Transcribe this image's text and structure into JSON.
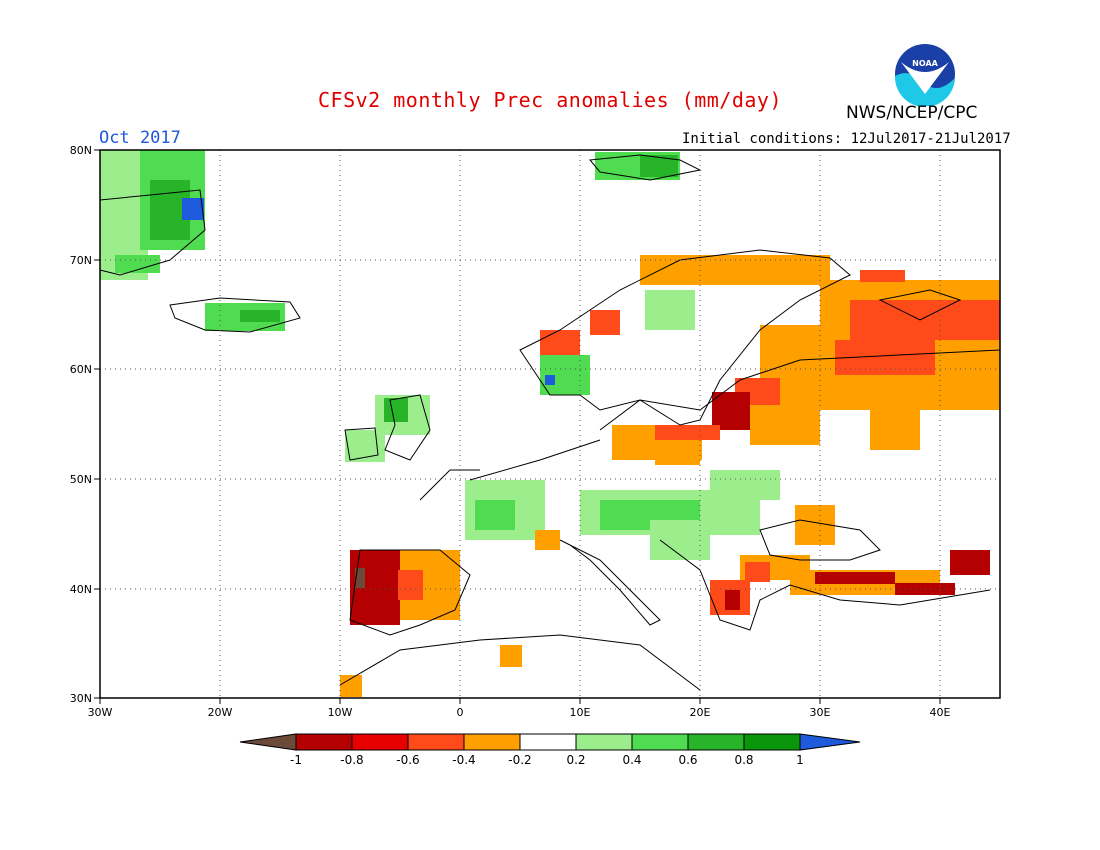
{
  "title": "CFSv2 monthly Prec anomalies (mm/day)",
  "agency": "NWS/NCEP/CPC",
  "logo_text": "NOAA",
  "month": "Oct 2017",
  "initial_conditions": "Initial conditions: 12Jul2017-21Jul2017",
  "map": {
    "lon_range": [
      -30,
      45
    ],
    "lat_range": [
      30,
      80
    ],
    "lon_labels": [
      "30W",
      "20W",
      "10W",
      "0",
      "10E",
      "20E",
      "30E",
      "40E"
    ],
    "lat_labels": [
      "30N",
      "40N",
      "50N",
      "60N",
      "70N",
      "80N"
    ],
    "gridlines": "dotted"
  },
  "legend": {
    "ticks": [
      "-1",
      "-0.8",
      "-0.6",
      "-0.4",
      "-0.2",
      "0.2",
      "0.4",
      "0.6",
      "0.8",
      "1"
    ],
    "colors": [
      "#6b4a3a",
      "#b40000",
      "#e60000",
      "#ff4a1a",
      "#ffa000",
      "#ffffff",
      "#9cee8c",
      "#50dc50",
      "#28b428",
      "#0a960a",
      "#1e5adc"
    ]
  },
  "colors": {
    "title": "#e00000",
    "month": "#2255dd",
    "dry_strong": "#b40000",
    "dry": "#ff4a1a",
    "dry_weak": "#ffa000",
    "wet_weak": "#9cee8c",
    "wet": "#50dc50",
    "wet_strong": "#0a960a",
    "wet_max": "#1e5adc"
  }
}
